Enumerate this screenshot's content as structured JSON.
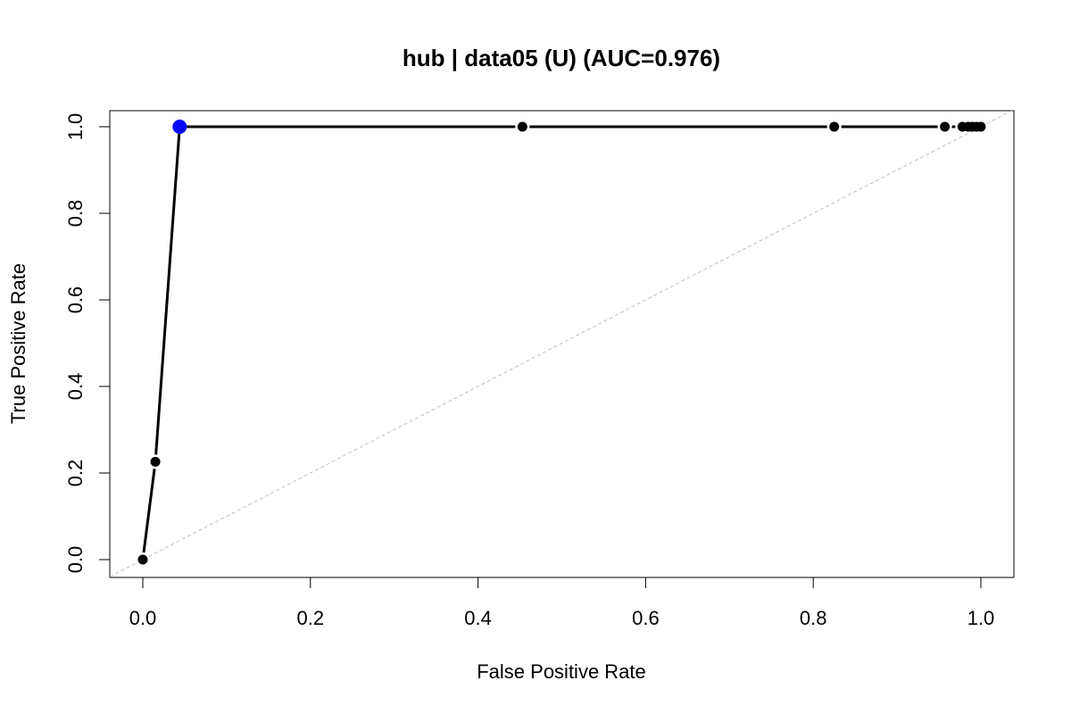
{
  "chart_data": {
    "type": "line",
    "title": "hub | data05 (U) (AUC=0.976)",
    "xlabel": "False Positive Rate",
    "ylabel": "True Positive Rate",
    "xlim": [
      0,
      1
    ],
    "ylim": [
      0,
      1
    ],
    "x_ticks": [
      "0.0",
      "0.2",
      "0.4",
      "0.6",
      "0.8",
      "1.0"
    ],
    "y_ticks": [
      "0.0",
      "0.2",
      "0.4",
      "0.6",
      "0.8",
      "1.0"
    ],
    "grid": false,
    "legend": "none",
    "diagonal_reference": {
      "from": [
        0,
        0
      ],
      "to": [
        1,
        1
      ],
      "color": "#bebebe",
      "style": "dashed"
    },
    "series": [
      {
        "color": "#000000",
        "x": [
          0.0,
          0.015,
          0.044,
          0.453,
          0.825,
          0.957,
          0.978,
          0.985,
          0.99,
          0.995,
          1.0
        ],
        "y": [
          0.0,
          0.226,
          1.0,
          1.0,
          1.0,
          1.0,
          1.0,
          1.0,
          1.0,
          1.0,
          1.0
        ]
      }
    ],
    "highlight_point": {
      "x": 0.044,
      "y": 1.0,
      "color": "#0000ff"
    }
  }
}
